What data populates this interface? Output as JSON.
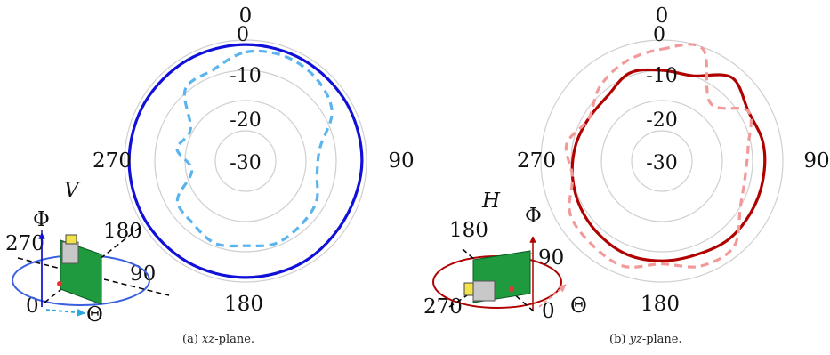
{
  "chart_data": [
    {
      "type": "polar-line",
      "caption": "(a) xz-plane.",
      "caption_tag": "(a)",
      "caption_var": "xz",
      "caption_rest": "-plane.",
      "radial_ticks": [
        "0",
        "-10",
        "-20",
        "-30"
      ],
      "radial_values": [
        0,
        -10,
        -20,
        -30
      ],
      "r_range": [
        -40,
        0
      ],
      "angle_labels": [
        "0",
        "90",
        "180",
        "270"
      ],
      "angle_values": [
        0,
        90,
        180,
        270
      ],
      "grid": true,
      "colors": {
        "solid": "#1010d8",
        "dashed": "#5bb4ee"
      },
      "series": [
        {
          "style": "solid",
          "angles": [
            0,
            30,
            60,
            90,
            120,
            150,
            180,
            210,
            240,
            270,
            300,
            330
          ],
          "values": [
            -1.5,
            -1.5,
            -1.5,
            -1.5,
            -2,
            -1.5,
            -1.5,
            -1.5,
            -1.5,
            -1.5,
            -1.5,
            -1.5
          ]
        },
        {
          "style": "dashed",
          "angles": [
            0,
            20,
            40,
            60,
            80,
            100,
            120,
            140,
            160,
            180,
            200,
            220,
            240,
            260,
            280,
            300,
            320,
            340
          ],
          "values": [
            -4,
            -3,
            -4,
            -7,
            -15,
            -16,
            -13,
            -12,
            -11,
            -12,
            -11,
            -13,
            -14,
            -22,
            -17,
            -19,
            -9,
            -8
          ]
        }
      ],
      "inset": {
        "polarization": "V",
        "labels": [
          "Φ",
          "180",
          "270",
          "90",
          "0",
          "Θ"
        ]
      }
    },
    {
      "type": "polar-line",
      "caption": "(b) yz-plane.",
      "caption_tag": "(b)",
      "caption_var": "yz",
      "caption_rest": "-plane.",
      "radial_ticks": [
        "0",
        "-10",
        "-20",
        "-30"
      ],
      "radial_values": [
        0,
        -10,
        -20,
        -30
      ],
      "r_range": [
        -40,
        0
      ],
      "angle_labels": [
        "0",
        "90",
        "180",
        "270"
      ],
      "angle_values": [
        0,
        90,
        180,
        270
      ],
      "grid": true,
      "colors": {
        "solid": "#b00000",
        "dashed": "#f29a9a"
      },
      "series": [
        {
          "style": "solid",
          "angles": [
            0,
            20,
            40,
            60,
            80,
            100,
            120,
            140,
            160,
            180,
            200,
            220,
            240,
            260,
            280,
            300,
            320,
            340
          ],
          "values": [
            -10,
            -10,
            -4,
            -7,
            -6,
            -6,
            -6,
            -6,
            -7,
            -7,
            -7,
            -8,
            -9,
            -10,
            -11,
            -12,
            -12,
            -9
          ]
        },
        {
          "style": "dashed",
          "angles": [
            0,
            20,
            40,
            60,
            80,
            100,
            120,
            140,
            160,
            180,
            200,
            220,
            240,
            260,
            280,
            300,
            320,
            340
          ],
          "values": [
            -3,
            -0.5,
            -15,
            -7,
            -11,
            -12,
            -10,
            -3,
            -3,
            -6,
            -3,
            -4,
            -5,
            -10,
            -8,
            -12,
            -8,
            -5
          ]
        }
      ],
      "inset": {
        "polarization": "H",
        "labels": [
          "Φ",
          "180",
          "90",
          "270",
          "0",
          "Θ"
        ]
      }
    }
  ]
}
